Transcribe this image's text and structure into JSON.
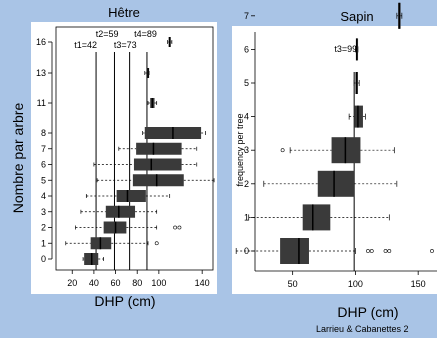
{
  "chart_data": [
    {
      "type": "boxplot",
      "title": "Hêtre",
      "xlabel": "DHP (cm)",
      "ylabel": "Nombre par arbre",
      "xlim": [
        5,
        150
      ],
      "x_ticks": [
        20,
        40,
        60,
        80,
        100,
        140
      ],
      "y_ticks": [
        0,
        1,
        2,
        3,
        4,
        5,
        6,
        7,
        8,
        11,
        13,
        16
      ],
      "threshold_lines": [
        {
          "label": "t1=42",
          "x": 42
        },
        {
          "label": "t2=59",
          "x": 59
        },
        {
          "label": "t3=73",
          "x": 73
        },
        {
          "label": "t4=89",
          "x": 89
        }
      ],
      "boxes": [
        {
          "y": 0,
          "wmin": 30,
          "q1": 31,
          "median": 38,
          "q3": 44,
          "wmax": 49,
          "outliers": []
        },
        {
          "y": 1,
          "wmin": 14,
          "q1": 37,
          "median": 46,
          "q3": 56,
          "wmax": 90,
          "outliers": [
            98
          ]
        },
        {
          "y": 2,
          "wmin": 23,
          "q1": 49,
          "median": 60,
          "q3": 70,
          "wmax": 98,
          "outliers": [
            115,
            119
          ]
        },
        {
          "y": 3,
          "wmin": 28,
          "q1": 51,
          "median": 63,
          "q3": 78,
          "wmax": 98,
          "outliers": []
        },
        {
          "y": 4,
          "wmin": 33,
          "q1": 61,
          "median": 71,
          "q3": 88,
          "wmax": 110,
          "outliers": []
        },
        {
          "y": 5,
          "wmin": 43,
          "q1": 76,
          "median": 98,
          "q3": 123,
          "wmax": 151,
          "outliers": []
        },
        {
          "y": 6,
          "wmin": 40,
          "q1": 77,
          "median": 93,
          "q3": 121,
          "wmax": 135,
          "outliers": []
        },
        {
          "y": 7,
          "wmin": 63,
          "q1": 79,
          "median": 95,
          "q3": 121,
          "wmax": 135,
          "outliers": []
        },
        {
          "y": 8,
          "wmin": 85,
          "q1": 87,
          "median": 113,
          "q3": 139,
          "wmax": 143,
          "outliers": []
        },
        {
          "y": 11,
          "wmin": 90,
          "q1": 92,
          "median": 94,
          "q3": 96,
          "wmax": 98,
          "outliers": []
        },
        {
          "y": 13,
          "wmin": 87,
          "q1": 89,
          "median": 90,
          "q3": 91,
          "wmax": 91,
          "outliers": []
        },
        {
          "y": 16,
          "wmin": 108,
          "q1": 109,
          "median": 110,
          "q3": 111,
          "wmax": 112,
          "outliers": []
        }
      ]
    },
    {
      "type": "boxplot",
      "title": "Sapin",
      "xlabel": "DHP (cm)",
      "ylabel": "frequency per tree",
      "xlim": [
        20,
        165
      ],
      "x_ticks": [
        50,
        100,
        150
      ],
      "y_ticks": [
        0,
        1,
        2,
        3,
        4,
        5,
        6,
        7
      ],
      "threshold_lines": [
        {
          "label": "t3=99",
          "x": 99
        }
      ],
      "boxes": [
        {
          "y": 0,
          "wmin": 5,
          "q1": 40,
          "median": 55,
          "q3": 63,
          "wmax": 100,
          "outliers": [
            110,
            113,
            124,
            127,
            161
          ]
        },
        {
          "y": 1,
          "wmin": 15,
          "q1": 58,
          "median": 66,
          "q3": 80,
          "wmax": 127,
          "outliers": []
        },
        {
          "y": 2,
          "wmin": 27,
          "q1": 70,
          "median": 83,
          "q3": 99,
          "wmax": 133,
          "outliers": []
        },
        {
          "y": 3,
          "wmin": 48,
          "q1": 81,
          "median": 92,
          "q3": 104,
          "wmax": 131,
          "outliers": [
            42
          ]
        },
        {
          "y": 4,
          "wmin": 95,
          "q1": 99,
          "median": 102,
          "q3": 106,
          "wmax": 108,
          "outliers": []
        },
        {
          "y": 5,
          "wmin": 99,
          "q1": 100,
          "median": 101,
          "q3": 102,
          "wmax": 103,
          "outliers": []
        },
        {
          "y": 6,
          "wmin": 100,
          "q1": 100.5,
          "median": 101,
          "q3": 101.5,
          "wmax": 102,
          "outliers": []
        },
        {
          "y": 7,
          "wmin": 133,
          "q1": 134,
          "median": 135,
          "q3": 136,
          "wmax": 137,
          "outliers": []
        }
      ]
    }
  ],
  "credit": "Larrieu & Cabanettes 2"
}
